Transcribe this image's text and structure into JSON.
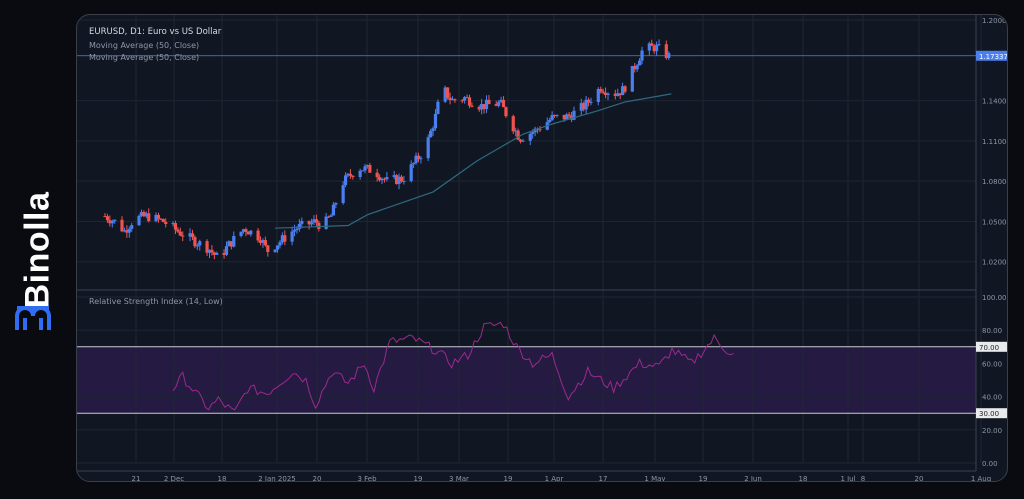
{
  "brand": {
    "name": "Binolla",
    "accent": "#2f6ef2"
  },
  "chart": {
    "title": "EURUSD, D1: Euro vs US Dollar",
    "ma_labels": [
      "Moving Average (50, Close)",
      "Moving Average (50, Close)"
    ],
    "rsi_label": "Relative Strength Index (14, Low)",
    "current_price": "1.17337",
    "price_ticks": [
      "1.20000",
      "1.14000",
      "1.11000",
      "1.08000",
      "1.05000",
      "1.02000"
    ],
    "rsi_ticks": [
      "100.00",
      "80.00",
      "60.00",
      "40.00",
      "20.00",
      "0.00"
    ],
    "rsi_badges": [
      "70.00",
      "30.00"
    ],
    "date_labels": [
      "21",
      "2 Dec",
      "18",
      "2 Jan 2025",
      "20",
      "3 Feb",
      "19",
      "3 Mar",
      "19",
      "1 Apr",
      "17",
      "1 May",
      "19",
      "2 Jun",
      "18",
      "1 Jul",
      "8",
      "20",
      "1 Aug"
    ],
    "colors": {
      "up": "#4a7ff0",
      "down": "#ef5350",
      "ma": "#2d6a80",
      "rsi": "#9c2a8e",
      "band": "#2a1b4a"
    }
  },
  "chart_data": {
    "type": "candlestick",
    "symbol": "EURUSD",
    "timeframe": "D1",
    "ylim": [
      1.005,
      1.2
    ],
    "price_keypoints_by_day": [
      [
        0,
        1.054
      ],
      [
        6,
        1.05
      ],
      [
        12,
        1.043
      ],
      [
        18,
        1.052
      ],
      [
        26,
        1.054
      ],
      [
        36,
        1.05
      ],
      [
        46,
        1.042
      ],
      [
        56,
        1.035
      ],
      [
        64,
        1.03
      ],
      [
        70,
        1.022
      ],
      [
        76,
        1.032
      ],
      [
        86,
        1.045
      ],
      [
        96,
        1.038
      ],
      [
        100,
        1.028
      ],
      [
        108,
        1.035
      ],
      [
        118,
        1.045
      ],
      [
        130,
        1.05
      ],
      [
        134,
        1.046
      ],
      [
        140,
        1.055
      ],
      [
        146,
        1.078
      ],
      [
        156,
        1.09
      ],
      [
        166,
        1.088
      ],
      [
        174,
        1.08
      ],
      [
        184,
        1.082
      ],
      [
        190,
        1.092
      ],
      [
        198,
        1.105
      ],
      [
        204,
        1.128
      ],
      [
        208,
        1.15
      ],
      [
        214,
        1.14
      ],
      [
        222,
        1.142
      ],
      [
        232,
        1.136
      ],
      [
        244,
        1.138
      ],
      [
        250,
        1.125
      ],
      [
        256,
        1.112
      ],
      [
        266,
        1.118
      ],
      [
        276,
        1.127
      ],
      [
        286,
        1.128
      ],
      [
        296,
        1.136
      ],
      [
        306,
        1.15
      ],
      [
        314,
        1.145
      ],
      [
        320,
        1.148
      ],
      [
        326,
        1.163
      ],
      [
        332,
        1.178
      ],
      [
        340,
        1.18
      ],
      [
        348,
        1.173
      ]
    ],
    "ma50_keypoints_by_day": [
      [
        140,
        1.045
      ],
      [
        200,
        1.047
      ],
      [
        216,
        1.055
      ],
      [
        270,
        1.072
      ],
      [
        306,
        1.095
      ],
      [
        344,
        1.115
      ],
      [
        366,
        1.122
      ],
      [
        404,
        1.132
      ],
      [
        428,
        1.139
      ],
      [
        466,
        1.145
      ]
    ],
    "rsi_keypoints_by_day": [
      [
        42,
        45
      ],
      [
        48,
        52
      ],
      [
        56,
        42
      ],
      [
        64,
        33
      ],
      [
        70,
        38
      ],
      [
        80,
        30
      ],
      [
        88,
        45
      ],
      [
        100,
        42
      ],
      [
        116,
        55
      ],
      [
        124,
        50
      ],
      [
        130,
        35
      ],
      [
        140,
        55
      ],
      [
        150,
        48
      ],
      [
        160,
        60
      ],
      [
        166,
        45
      ],
      [
        176,
        73
      ],
      [
        190,
        75
      ],
      [
        204,
        68
      ],
      [
        214,
        60
      ],
      [
        224,
        65
      ],
      [
        234,
        82
      ],
      [
        246,
        84
      ],
      [
        254,
        70
      ],
      [
        264,
        60
      ],
      [
        276,
        65
      ],
      [
        286,
        40
      ],
      [
        298,
        55
      ],
      [
        314,
        45
      ],
      [
        330,
        60
      ],
      [
        342,
        58
      ],
      [
        350,
        68
      ],
      [
        362,
        60
      ],
      [
        376,
        75
      ],
      [
        384,
        68
      ],
      [
        388,
        65
      ]
    ]
  }
}
